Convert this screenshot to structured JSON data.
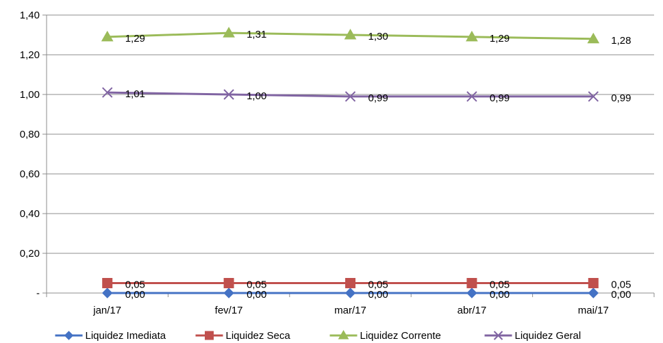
{
  "chart_data": {
    "type": "line",
    "title": "",
    "xlabel": "",
    "ylabel": "",
    "categories": [
      "jan/17",
      "fev/17",
      "mar/17",
      "abr/17",
      "mai/17"
    ],
    "ylim": [
      0,
      1.4
    ],
    "yticks": [
      0,
      0.2,
      0.4,
      0.6,
      0.8,
      1.0,
      1.2,
      1.4
    ],
    "ytick_labels": [
      "-",
      "0,20",
      "0,40",
      "0,60",
      "0,80",
      "1,00",
      "1,20",
      "1,40"
    ],
    "grid": true,
    "legend_position": "bottom",
    "series": [
      {
        "name": "Liquidez Imediata",
        "color": "#4472C4",
        "marker": "diamond",
        "values": [
          0.0,
          0.0,
          0.0,
          0.0,
          0.0
        ],
        "labels": [
          "0,00",
          "0,00",
          "0,00",
          "0,00",
          "0,00"
        ]
      },
      {
        "name": "Liquidez Seca",
        "color": "#C0504D",
        "marker": "square",
        "values": [
          0.05,
          0.05,
          0.05,
          0.05,
          0.05
        ],
        "labels": [
          "0,05",
          "0,05",
          "0,05",
          "0,05",
          "0,05"
        ]
      },
      {
        "name": "Liquidez Corrente",
        "color": "#9BBB59",
        "marker": "triangle",
        "values": [
          1.29,
          1.31,
          1.3,
          1.29,
          1.28
        ],
        "labels": [
          "1,29",
          "1,31",
          "1,30",
          "1,29",
          "1,28"
        ]
      },
      {
        "name": "Liquidez Geral",
        "color": "#8064A2",
        "marker": "x",
        "values": [
          1.01,
          1.0,
          0.99,
          0.99,
          0.99
        ],
        "labels": [
          "1,01",
          "1,00",
          "0,99",
          "0,99",
          "0,99"
        ]
      }
    ]
  }
}
